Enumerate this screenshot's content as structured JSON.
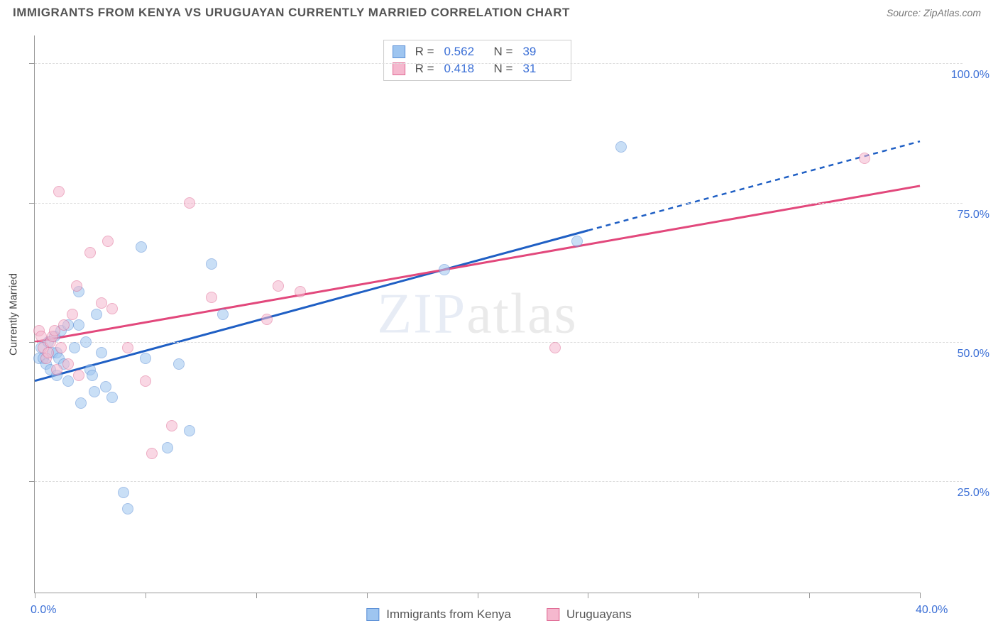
{
  "title": "IMMIGRANTS FROM KENYA VS URUGUAYAN CURRENTLY MARRIED CORRELATION CHART",
  "source": "Source: ZipAtlas.com",
  "watermark": {
    "bold": "ZIP",
    "thin": "atlas"
  },
  "chart": {
    "type": "scatter",
    "ylabel": "Currently Married",
    "x_min": 0,
    "x_max": 40,
    "y_min": 5,
    "y_max": 105,
    "x_ticks": [
      0,
      5,
      10,
      15,
      20,
      25,
      30,
      35,
      40
    ],
    "x_tick_labels": {
      "0": "0.0%",
      "40": "40.0%"
    },
    "y_gridlines": [
      25,
      50,
      75,
      100
    ],
    "y_tick_labels": {
      "25": "25.0%",
      "50": "50.0%",
      "75": "75.0%",
      "100": "100.0%"
    },
    "background": "#ffffff",
    "grid_color": "#dddddd",
    "axis_label_color": "#3b6fd6",
    "point_radius": 8,
    "point_opacity": 0.55,
    "series": [
      {
        "name": "Immigrants from Kenya",
        "color_fill": "#9ec5f0",
        "color_stroke": "#5b8fd6",
        "line_color": "#1f5fc4",
        "r": "0.562",
        "n": "39",
        "trend": {
          "x1": 0,
          "y1": 43,
          "x2_solid": 25,
          "y2_solid": 70,
          "x2_dash": 40,
          "y2_dash": 86
        },
        "points": [
          [
            0.2,
            47
          ],
          [
            0.3,
            49
          ],
          [
            0.4,
            47
          ],
          [
            0.5,
            46
          ],
          [
            0.6,
            50
          ],
          [
            0.7,
            45
          ],
          [
            0.8,
            48
          ],
          [
            0.9,
            51
          ],
          [
            1.0,
            44
          ],
          [
            1.0,
            48
          ],
          [
            1.1,
            47
          ],
          [
            1.2,
            52
          ],
          [
            1.3,
            46
          ],
          [
            1.5,
            43
          ],
          [
            1.5,
            53
          ],
          [
            1.8,
            49
          ],
          [
            2.0,
            59
          ],
          [
            2.0,
            53
          ],
          [
            2.1,
            39
          ],
          [
            2.3,
            50
          ],
          [
            2.5,
            45
          ],
          [
            2.6,
            44
          ],
          [
            2.7,
            41
          ],
          [
            2.8,
            55
          ],
          [
            3.0,
            48
          ],
          [
            3.2,
            42
          ],
          [
            3.5,
            40
          ],
          [
            4.0,
            23
          ],
          [
            4.2,
            20
          ],
          [
            4.8,
            67
          ],
          [
            5.0,
            47
          ],
          [
            6.0,
            31
          ],
          [
            6.5,
            46
          ],
          [
            7.0,
            34
          ],
          [
            8.0,
            64
          ],
          [
            8.5,
            55
          ],
          [
            18.5,
            63
          ],
          [
            24.5,
            68
          ],
          [
            26.5,
            85
          ]
        ]
      },
      {
        "name": "Uruguayans",
        "color_fill": "#f5b8ce",
        "color_stroke": "#e06a94",
        "line_color": "#e2487c",
        "r": "0.418",
        "n": "31",
        "trend": {
          "x1": 0,
          "y1": 50,
          "x2_solid": 40,
          "y2_solid": 78,
          "x2_dash": 40,
          "y2_dash": 78
        },
        "points": [
          [
            0.2,
            52
          ],
          [
            0.3,
            51
          ],
          [
            0.4,
            49
          ],
          [
            0.5,
            47
          ],
          [
            0.6,
            48
          ],
          [
            0.7,
            50
          ],
          [
            0.8,
            51
          ],
          [
            0.9,
            52
          ],
          [
            1.0,
            45
          ],
          [
            1.1,
            77
          ],
          [
            1.2,
            49
          ],
          [
            1.3,
            53
          ],
          [
            1.5,
            46
          ],
          [
            1.7,
            55
          ],
          [
            1.9,
            60
          ],
          [
            2.0,
            44
          ],
          [
            2.5,
            66
          ],
          [
            3.0,
            57
          ],
          [
            3.3,
            68
          ],
          [
            3.5,
            56
          ],
          [
            4.2,
            49
          ],
          [
            5.0,
            43
          ],
          [
            5.3,
            30
          ],
          [
            6.2,
            35
          ],
          [
            7.0,
            75
          ],
          [
            8.0,
            58
          ],
          [
            10.5,
            54
          ],
          [
            11.0,
            60
          ],
          [
            12.0,
            59
          ],
          [
            23.5,
            49
          ],
          [
            37.5,
            83
          ]
        ]
      }
    ]
  },
  "legend_bottom": [
    {
      "label": "Immigrants from Kenya",
      "fill": "#9ec5f0",
      "stroke": "#5b8fd6"
    },
    {
      "label": "Uruguayans",
      "fill": "#f5b8ce",
      "stroke": "#e06a94"
    }
  ]
}
